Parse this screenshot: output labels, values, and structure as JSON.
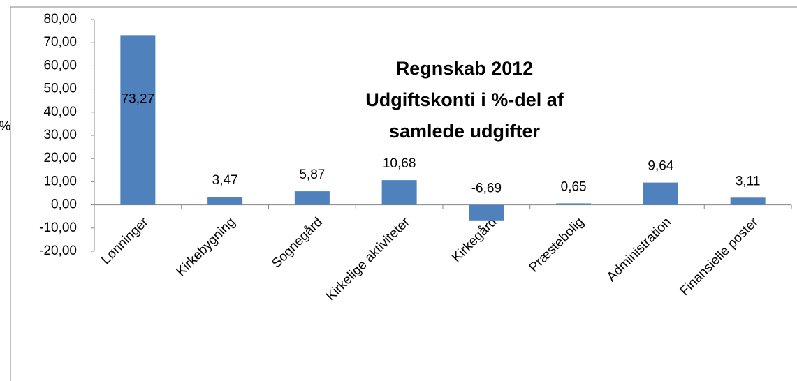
{
  "chart_data": {
    "type": "bar",
    "title": [
      "Regnskab 2012",
      "Udgiftskonti i %-del af",
      "samlede udgifter"
    ],
    "y_label": "%",
    "categories": [
      "Lønninger",
      "Kirkebygning",
      "Sognegård",
      "Kirkelige aktiviteter",
      "Kirkegård",
      "Præstebolig",
      "Administration",
      "Finansielle poster"
    ],
    "values": [
      73.27,
      3.47,
      5.87,
      10.68,
      -6.69,
      0.65,
      9.64,
      3.11
    ],
    "value_labels": [
      "73,27",
      "3,47",
      "5,87",
      "10,68",
      "-6,69",
      "0,65",
      "9,64",
      "3,11"
    ],
    "color": "#4f81bd",
    "ylim": [
      -20,
      80
    ],
    "yticks": [
      {
        "value": -20,
        "label": "-20,00"
      },
      {
        "value": -10,
        "label": "-10,00"
      },
      {
        "value": 0,
        "label": "0,00"
      },
      {
        "value": 10,
        "label": "10,00"
      },
      {
        "value": 20,
        "label": "20,00"
      },
      {
        "value": 30,
        "label": "30,00"
      },
      {
        "value": 40,
        "label": "40,00"
      },
      {
        "value": 50,
        "label": "50,00"
      },
      {
        "value": 60,
        "label": "60,00"
      },
      {
        "value": 70,
        "label": "70,00"
      },
      {
        "value": 80,
        "label": "80,00"
      }
    ],
    "grid": false
  }
}
